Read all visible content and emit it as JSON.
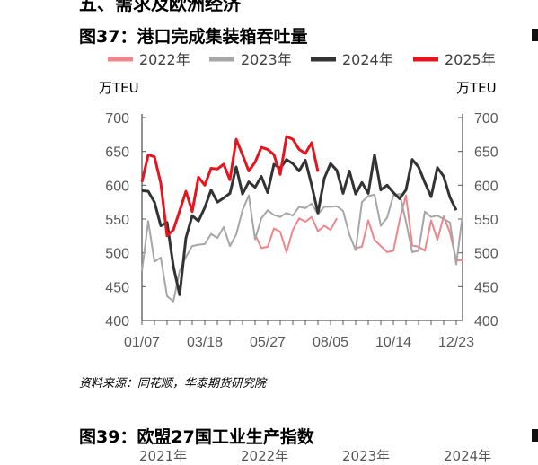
{
  "header": {
    "section_title": "五、需求及欧洲经济",
    "figure_title": "图37：港口完成集装箱吞吐量",
    "source": "资料来源：同花顺，华泰期货研究院",
    "next_figure_title": "图39：欧盟27国工业生产指数",
    "next_legend": [
      "2021年",
      "2022年",
      "2023年",
      "2024年"
    ]
  },
  "chart_data": {
    "type": "line",
    "ylabel_left": "万TEU",
    "ylabel_right": "万TEU",
    "ylim": [
      400,
      700
    ],
    "yticks": [
      "400",
      "450",
      "500",
      "550",
      "600",
      "650",
      "700"
    ],
    "xticks": [
      "01/07",
      "03/18",
      "05/27",
      "08/05",
      "10/14",
      "12/23"
    ],
    "xtick_index": [
      0,
      10,
      20,
      30,
      40,
      50
    ],
    "x_count": 52,
    "grid": false,
    "legend_position": "top",
    "series": [
      {
        "name": "2022年",
        "color": "#f0858b",
        "width": 2,
        "values": [
          null,
          null,
          null,
          null,
          null,
          null,
          null,
          null,
          null,
          null,
          null,
          null,
          null,
          null,
          null,
          null,
          null,
          null,
          527,
          507,
          509,
          536,
          531,
          501,
          534,
          551,
          546,
          553,
          532,
          540,
          534,
          551,
          null,
          null,
          507,
          509,
          548,
          519,
          510,
          501,
          503,
          549,
          585,
          511,
          509,
          503,
          548,
          519,
          554,
          530,
          489,
          489
        ]
      },
      {
        "name": "2023年",
        "color": "#a6a6a6",
        "width": 2,
        "values": [
          473,
          547,
          487,
          493,
          436,
          428,
          473,
          494,
          510,
          512,
          513,
          528,
          522,
          538,
          510,
          527,
          563,
          585,
          520,
          551,
          563,
          556,
          553,
          559,
          555,
          568,
          566,
          573,
          557,
          568,
          568,
          569,
          562,
          527,
          504,
          575,
          584,
          586,
          540,
          552,
          585,
          587,
          546,
          501,
          503,
          561,
          553,
          555,
          550,
          545,
          483,
          556
        ]
      },
      {
        "name": "2024年",
        "color": "#333333",
        "width": 3,
        "values": [
          592,
          591,
          575,
          540,
          545,
          480,
          438,
          522,
          555,
          547,
          567,
          593,
          575,
          581,
          588,
          627,
          587,
          605,
          597,
          613,
          589,
          631,
          625,
          638,
          632,
          621,
          637,
          600,
          559,
          610,
          632,
          622,
          588,
          621,
          587,
          604,
          588,
          645,
          593,
          600,
          589,
          580,
          593,
          638,
          627,
          604,
          583,
          626,
          613,
          582,
          563,
          null
        ]
      },
      {
        "name": "2025年",
        "color": "#e6141e",
        "width": 3,
        "values": [
          605,
          645,
          642,
          603,
          525,
          534,
          562,
          591,
          561,
          612,
          600,
          625,
          624,
          631,
          608,
          668,
          645,
          621,
          634,
          656,
          653,
          645,
          616,
          672,
          668,
          653,
          647,
          663,
          620,
          null,
          null,
          null,
          null,
          null,
          null,
          null,
          null,
          null,
          null,
          null,
          null,
          null,
          null,
          null,
          null,
          null,
          null,
          null,
          null,
          null,
          null,
          null
        ]
      }
    ]
  }
}
